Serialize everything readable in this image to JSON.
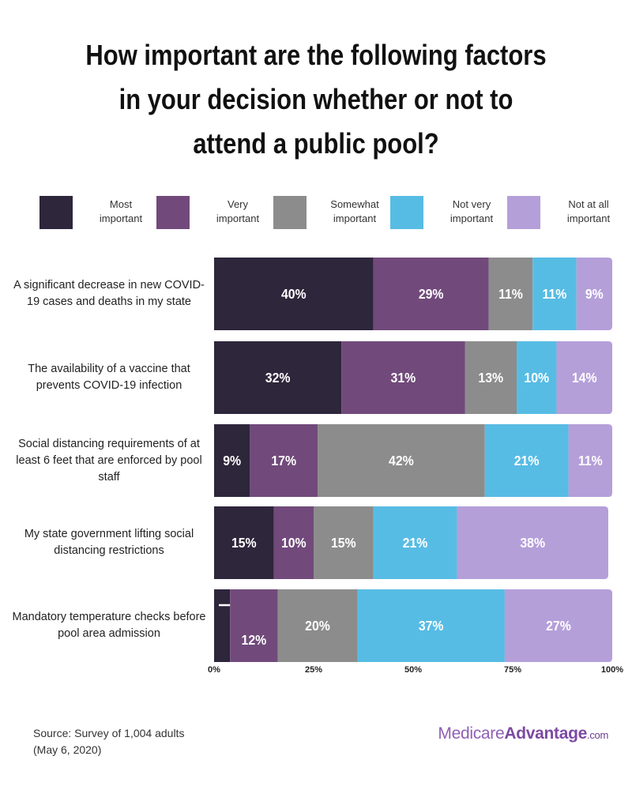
{
  "title_lines": [
    "How important are the following factors",
    "in your decision whether or not to",
    "attend a public pool?"
  ],
  "legend": [
    {
      "line1": "Most",
      "line2": "important",
      "color": "#2e263b"
    },
    {
      "line1": "Very",
      "line2": "important",
      "color": "#714a7b"
    },
    {
      "line1": "Somewhat",
      "line2": "important",
      "color": "#8c8c8c"
    },
    {
      "line1": "Not very",
      "line2": "important",
      "color": "#57bce4"
    },
    {
      "line1": "Not at all",
      "line2": "important",
      "color": "#b59fd9"
    }
  ],
  "source": {
    "line1": "Source: Survey of 1,004 adults",
    "line2": "(May 6, 2020)"
  },
  "brand": {
    "part1": "Medicare",
    "part2": "Advantage",
    "part3": ".com"
  },
  "chart_data": {
    "type": "bar",
    "orientation": "horizontal",
    "stacked": true,
    "categories": [
      "A significant decrease in new COVID-19 cases and deaths in my state",
      "The availability of a vaccine that prevents COVID-19 infection",
      "Social distancing requirements of at least 6 feet that are enforced by pool staff",
      "My state government lifting social distancing restrictions",
      "Mandatory temperature checks before pool area admission"
    ],
    "series": [
      {
        "name": "Most important",
        "values": [
          40,
          32,
          9,
          15,
          4
        ]
      },
      {
        "name": "Very important",
        "values": [
          29,
          31,
          17,
          10,
          12
        ]
      },
      {
        "name": "Somewhat important",
        "values": [
          11,
          13,
          42,
          15,
          20
        ]
      },
      {
        "name": "Not very important",
        "values": [
          11,
          10,
          21,
          21,
          37
        ]
      },
      {
        "name": "Not at all important",
        "values": [
          9,
          14,
          11,
          38,
          27
        ]
      }
    ],
    "data_labels": [
      [
        "40%",
        "29%",
        "11%",
        "11%",
        "9%"
      ],
      [
        "32%",
        "31%",
        "13%",
        "10%",
        "14%"
      ],
      [
        "9%",
        "17%",
        "42%",
        "21%",
        "11%"
      ],
      [
        "15%",
        "10%",
        "15%",
        "21%",
        "38%"
      ],
      [
        "4%",
        "12%",
        "20%",
        "37%",
        "27%"
      ]
    ],
    "x_ticks": [
      "0%",
      "25%",
      "50%",
      "75%",
      "100%"
    ],
    "xlim": [
      0,
      100
    ],
    "colors": [
      "#2e263b",
      "#714a7b",
      "#8c8c8c",
      "#57bce4",
      "#b59fd9"
    ]
  }
}
